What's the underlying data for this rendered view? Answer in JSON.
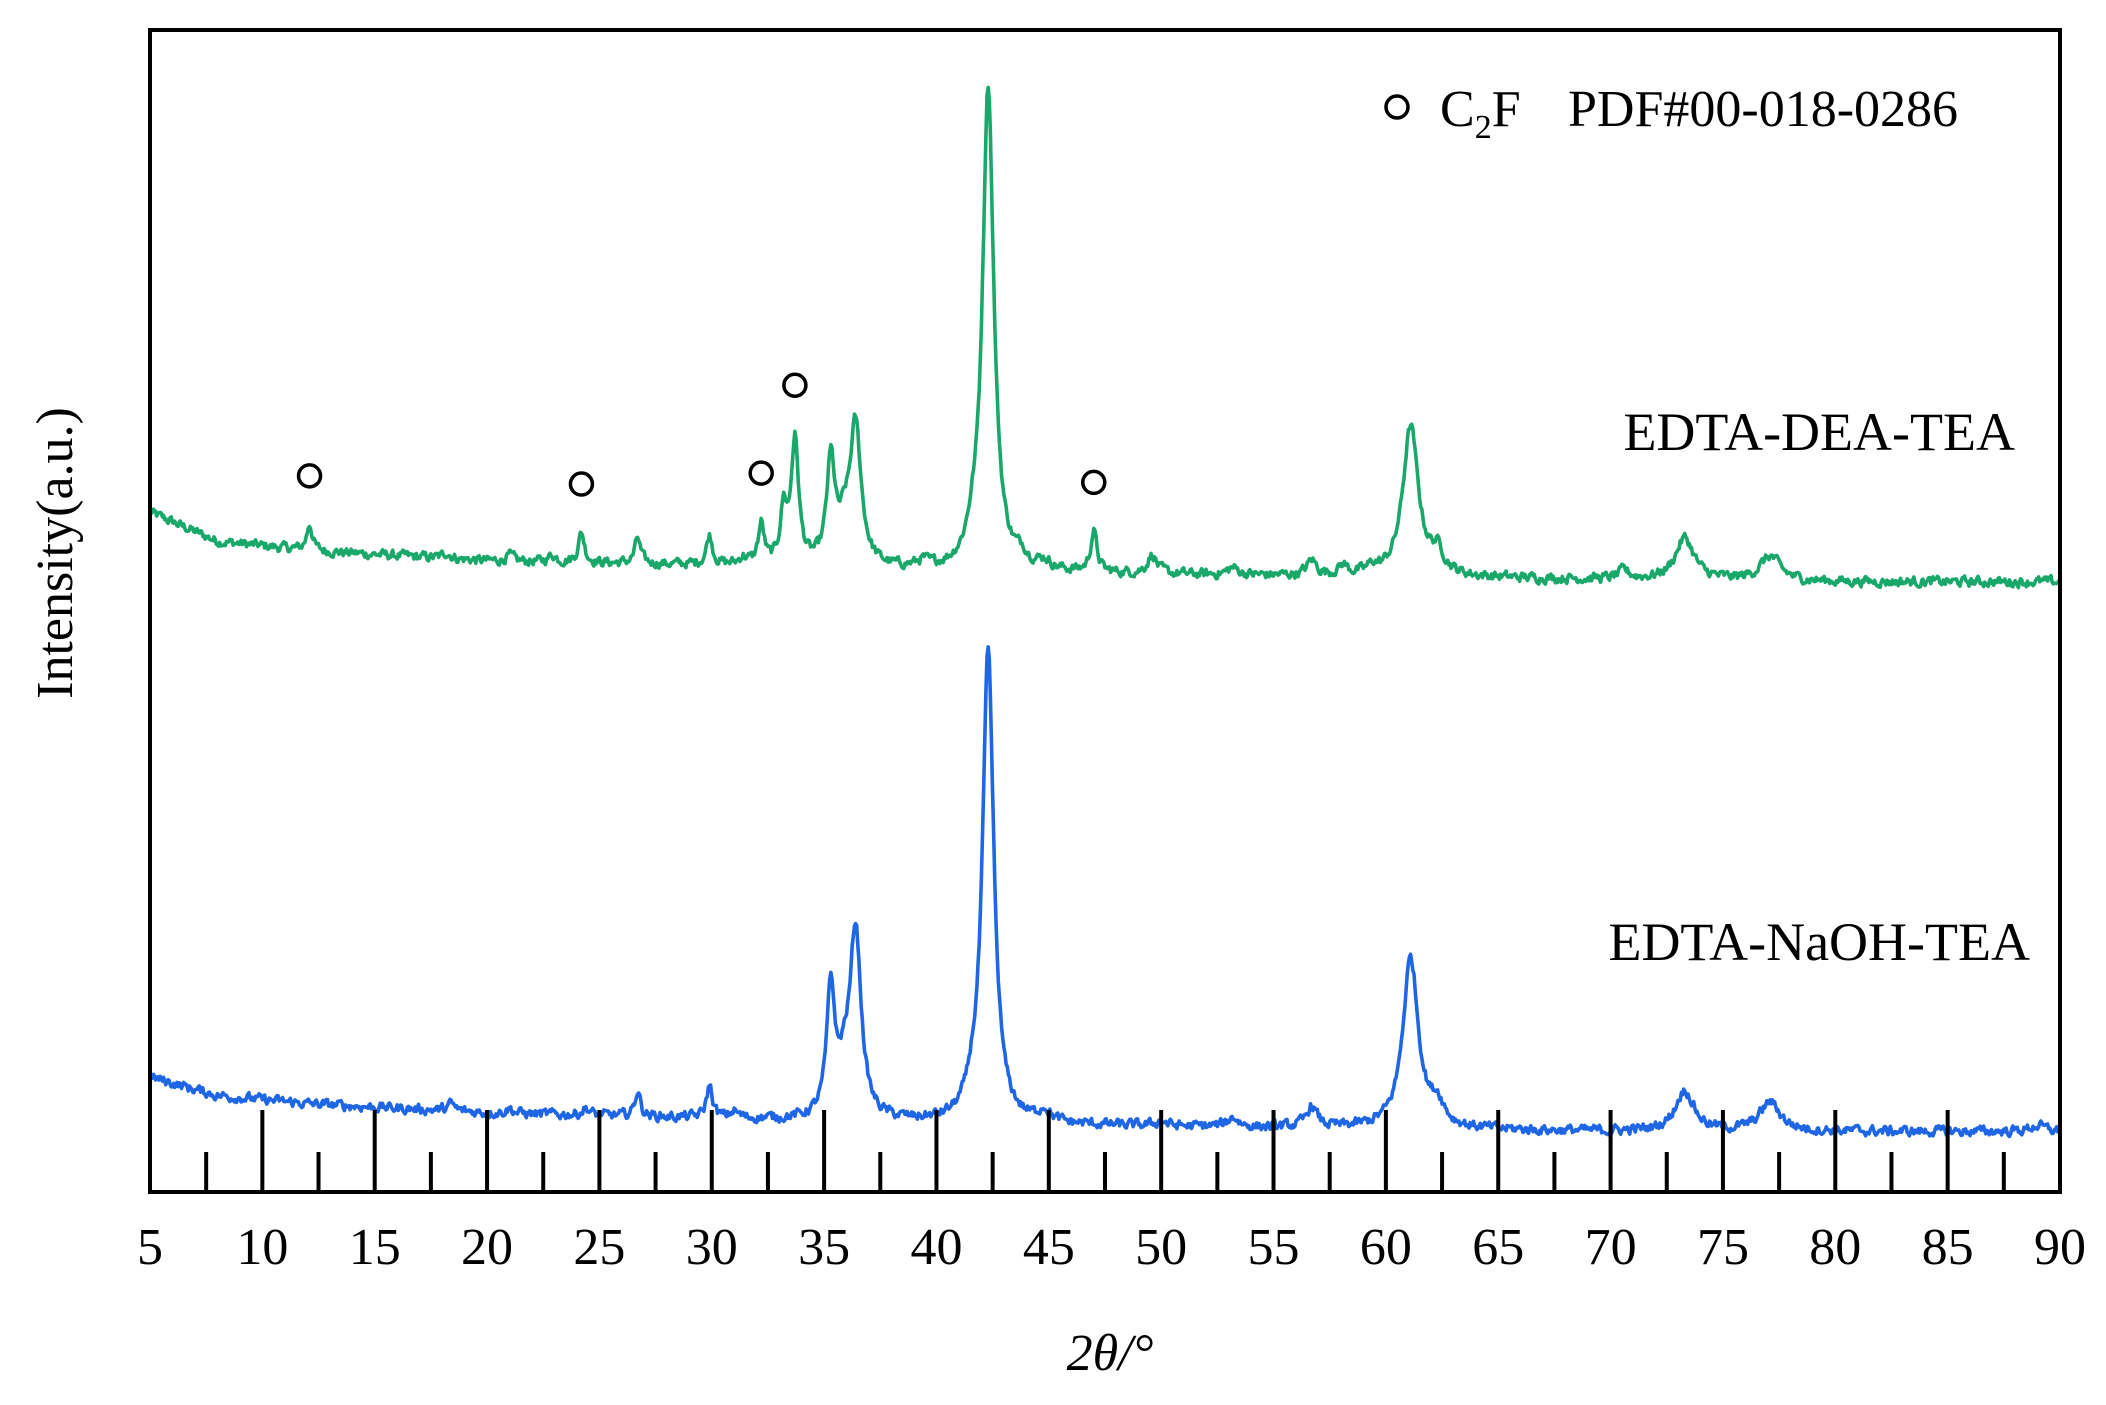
{
  "chart_data": {
    "type": "line",
    "xlabel": "2θ/°",
    "ylabel": "Intensity(a.u.)",
    "xlim": [
      5,
      90
    ],
    "ylim": [
      0,
      100
    ],
    "x_ticks": [
      5,
      10,
      15,
      20,
      25,
      30,
      35,
      40,
      45,
      50,
      55,
      60,
      65,
      70,
      75,
      80,
      85,
      90
    ],
    "legend": {
      "marker": "open-circle",
      "phase": "C2F",
      "phase_main": "C",
      "phase_sub": "2",
      "phase_tail": "F",
      "reference": "PDF#00-018-0286",
      "placement": "top-right"
    },
    "series": [
      {
        "name": "EDTA-DEA-TEA",
        "color": "#1aa86a",
        "baseline": [
          [
            5,
            58.5
          ],
          [
            8,
            56
          ],
          [
            12,
            55.2
          ],
          [
            20,
            54.3
          ],
          [
            30,
            53.9
          ],
          [
            40,
            53.4
          ],
          [
            50,
            53.1
          ],
          [
            60,
            52.9
          ],
          [
            70,
            52.7
          ],
          [
            80,
            52.5
          ],
          [
            90,
            52.5
          ]
        ],
        "peaks": [
          {
            "x": 12.1,
            "h": 2.3,
            "w": 0.15
          },
          {
            "x": 18.2,
            "h": 0.5,
            "w": 0.2
          },
          {
            "x": 21.0,
            "h": 0.5,
            "w": 0.2
          },
          {
            "x": 22.9,
            "h": 0.6,
            "w": 0.2
          },
          {
            "x": 24.2,
            "h": 2.6,
            "w": 0.16
          },
          {
            "x": 26.7,
            "h": 2.2,
            "w": 0.15
          },
          {
            "x": 29.9,
            "h": 2.5,
            "w": 0.16
          },
          {
            "x": 31.4,
            "h": 0.6,
            "w": 0.2
          },
          {
            "x": 32.2,
            "h": 3.4,
            "w": 0.16
          },
          {
            "x": 33.2,
            "h": 4.5,
            "w": 0.18
          },
          {
            "x": 33.7,
            "h": 10.6,
            "w": 0.2
          },
          {
            "x": 35.3,
            "h": 8.8,
            "w": 0.22
          },
          {
            "x": 35.9,
            "h": 2.5,
            "w": 0.3
          },
          {
            "x": 36.4,
            "h": 11.9,
            "w": 0.3
          },
          {
            "x": 39.4,
            "h": 0.5,
            "w": 0.3
          },
          {
            "x": 41.6,
            "h": 1.5,
            "w": 0.3
          },
          {
            "x": 42.3,
            "h": 41.7,
            "w": 0.3
          },
          {
            "x": 43.8,
            "h": 0.9,
            "w": 0.3
          },
          {
            "x": 44.8,
            "h": 0.7,
            "w": 0.3
          },
          {
            "x": 47.0,
            "h": 3.5,
            "w": 0.17
          },
          {
            "x": 49.6,
            "h": 1.6,
            "w": 0.25
          },
          {
            "x": 53.2,
            "h": 0.6,
            "w": 0.3
          },
          {
            "x": 56.7,
            "h": 1.3,
            "w": 0.25
          },
          {
            "x": 58.1,
            "h": 0.8,
            "w": 0.25
          },
          {
            "x": 59.4,
            "h": 0.6,
            "w": 0.25
          },
          {
            "x": 61.1,
            "h": 12.9,
            "w": 0.42
          },
          {
            "x": 62.3,
            "h": 1.8,
            "w": 0.35
          },
          {
            "x": 70.6,
            "h": 0.7,
            "w": 0.3
          },
          {
            "x": 73.3,
            "h": 3.6,
            "w": 0.5
          },
          {
            "x": 77.1,
            "h": 2.1,
            "w": 0.55
          }
        ],
        "markers": [
          12.1,
          24.2,
          32.2,
          33.7,
          47.0
        ]
      },
      {
        "name": "EDTA-NaOH-TEA",
        "color": "#1f66e5",
        "baseline": [
          [
            5,
            9.9
          ],
          [
            8,
            8.3
          ],
          [
            12,
            7.6
          ],
          [
            20,
            6.8
          ],
          [
            30,
            6.3
          ],
          [
            40,
            5.9
          ],
          [
            50,
            5.6
          ],
          [
            60,
            5.4
          ],
          [
            70,
            5.2
          ],
          [
            80,
            5.2
          ],
          [
            90,
            5.2
          ]
        ],
        "peaks": [
          {
            "x": 18.4,
            "h": 0.6,
            "w": 0.2
          },
          {
            "x": 21.0,
            "h": 0.4,
            "w": 0.2
          },
          {
            "x": 24.4,
            "h": 0.6,
            "w": 0.2
          },
          {
            "x": 26.7,
            "h": 2.2,
            "w": 0.15
          },
          {
            "x": 29.9,
            "h": 2.8,
            "w": 0.16
          },
          {
            "x": 31.0,
            "h": 0.6,
            "w": 0.2
          },
          {
            "x": 35.3,
            "h": 10.9,
            "w": 0.22
          },
          {
            "x": 35.9,
            "h": 3.0,
            "w": 0.3
          },
          {
            "x": 36.4,
            "h": 16.0,
            "w": 0.3
          },
          {
            "x": 41.6,
            "h": 1.5,
            "w": 0.3
          },
          {
            "x": 42.3,
            "h": 40.5,
            "w": 0.3
          },
          {
            "x": 44.8,
            "h": 1.0,
            "w": 0.3
          },
          {
            "x": 50.0,
            "h": 0.4,
            "w": 0.3
          },
          {
            "x": 53.2,
            "h": 0.8,
            "w": 0.3
          },
          {
            "x": 56.7,
            "h": 1.8,
            "w": 0.28
          },
          {
            "x": 61.1,
            "h": 14.7,
            "w": 0.42
          },
          {
            "x": 62.3,
            "h": 1.8,
            "w": 0.35
          },
          {
            "x": 73.3,
            "h": 3.5,
            "w": 0.5
          },
          {
            "x": 77.1,
            "h": 2.5,
            "w": 0.55
          },
          {
            "x": 89.0,
            "h": 0.5,
            "w": 0.4
          }
        ]
      }
    ]
  }
}
